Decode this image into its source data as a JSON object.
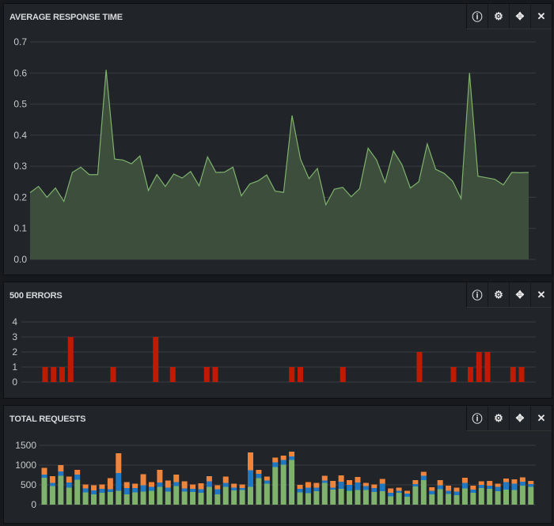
{
  "colors": {
    "grid": "#3a3d42",
    "area_line": "#7eb26d",
    "area_fill": "#3d4f3c",
    "errors": "#bf1b00",
    "green": "#7eb26d",
    "blue": "#1f78c1",
    "orange": "#ef843c"
  },
  "panel_tools": [
    {
      "icon": "info-icon",
      "glyph": "ⓘ"
    },
    {
      "icon": "gear-icon",
      "glyph": "⚙"
    },
    {
      "icon": "move-icon",
      "glyph": "✥"
    },
    {
      "icon": "close-icon",
      "glyph": "✕"
    }
  ],
  "panels": [
    {
      "title": "AVERAGE RESPONSE TIME"
    },
    {
      "title": "500 ERRORS"
    },
    {
      "title": "TOTAL REQUESTS"
    }
  ],
  "chart_data": [
    {
      "type": "area",
      "ylim": [
        0,
        0.7
      ],
      "yticks": [
        "0.0",
        "0.1",
        "0.2",
        "0.3",
        "0.4",
        "0.5",
        "0.6",
        "0.7"
      ],
      "grid": true,
      "values": [
        0.215,
        0.235,
        0.2,
        0.23,
        0.187,
        0.28,
        0.297,
        0.273,
        0.273,
        0.61,
        0.323,
        0.32,
        0.308,
        0.333,
        0.222,
        0.273,
        0.235,
        0.275,
        0.262,
        0.283,
        0.237,
        0.33,
        0.28,
        0.281,
        0.297,
        0.205,
        0.243,
        0.253,
        0.272,
        0.22,
        0.216,
        0.463,
        0.323,
        0.26,
        0.293,
        0.176,
        0.226,
        0.232,
        0.202,
        0.228,
        0.358,
        0.32,
        0.248,
        0.349,
        0.305,
        0.23,
        0.25,
        0.372,
        0.29,
        0.277,
        0.252,
        0.196,
        0.6,
        0.268,
        0.263,
        0.258,
        0.24,
        0.28,
        0.279,
        0.28
      ]
    },
    {
      "type": "bar",
      "ylim": [
        0,
        4
      ],
      "yticks": [
        "0",
        "1",
        "2",
        "3",
        "4"
      ],
      "grid": true,
      "values": [
        1,
        1,
        1,
        3,
        0,
        0,
        0,
        0,
        1,
        0,
        0,
        0,
        0,
        3,
        0,
        1,
        0,
        0,
        0,
        1,
        1,
        0,
        0,
        0,
        0,
        0,
        0,
        0,
        0,
        1,
        1,
        0,
        0,
        0,
        0,
        1,
        0,
        0,
        0,
        0,
        0,
        0,
        0,
        0,
        2,
        0,
        0,
        0,
        1,
        0,
        1,
        2,
        2,
        0,
        0,
        1,
        1,
        0
      ]
    },
    {
      "type": "stacked-bar",
      "ylim": [
        0,
        1500
      ],
      "yticks": [
        "0",
        "500",
        "1000",
        "1500"
      ],
      "grid": true,
      "series": [
        {
          "color": "green",
          "values": [
            680,
            470,
            730,
            430,
            630,
            310,
            260,
            300,
            320,
            350,
            260,
            310,
            330,
            350,
            450,
            330,
            470,
            330,
            320,
            300,
            450,
            260,
            450,
            360,
            370,
            450,
            670,
            530,
            950,
            1010,
            1130,
            310,
            290,
            340,
            550,
            380,
            400,
            350,
            370,
            370,
            320,
            340,
            210,
            300,
            200,
            460,
            620,
            260,
            390,
            270,
            240,
            410,
            300,
            420,
            400,
            340,
            380,
            370,
            480,
            450
          ]
        },
        {
          "color": "blue",
          "values": [
            80,
            80,
            110,
            130,
            130,
            100,
            100,
            100,
            70,
            450,
            160,
            110,
            160,
            100,
            110,
            100,
            100,
            80,
            80,
            90,
            140,
            130,
            100,
            70,
            50,
            420,
            110,
            80,
            120,
            120,
            90,
            90,
            140,
            90,
            60,
            50,
            180,
            150,
            190,
            100,
            100,
            190,
            90,
            50,
            80,
            60,
            110,
            90,
            100,
            80,
            90,
            140,
            80,
            80,
            80,
            110,
            190,
            160,
            100,
            70
          ]
        },
        {
          "color": "orange",
          "values": [
            170,
            170,
            160,
            150,
            120,
            100,
            130,
            110,
            280,
            500,
            150,
            110,
            280,
            120,
            320,
            180,
            190,
            180,
            110,
            150,
            130,
            100,
            160,
            100,
            90,
            450,
            100,
            100,
            120,
            110,
            120,
            100,
            140,
            120,
            120,
            170,
            160,
            120,
            140,
            80,
            90,
            120,
            110,
            80,
            70,
            100,
            100,
            90,
            130,
            130,
            100,
            130,
            100,
            90,
            120,
            80,
            90,
            110,
            110,
            80
          ]
        }
      ]
    }
  ]
}
